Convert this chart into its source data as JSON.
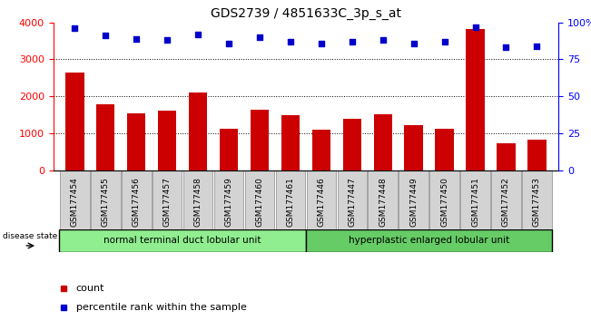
{
  "title": "GDS2739 / 4851633C_3p_s_at",
  "categories": [
    "GSM177454",
    "GSM177455",
    "GSM177456",
    "GSM177457",
    "GSM177458",
    "GSM177459",
    "GSM177460",
    "GSM177461",
    "GSM177446",
    "GSM177447",
    "GSM177448",
    "GSM177449",
    "GSM177450",
    "GSM177451",
    "GSM177452",
    "GSM177453"
  ],
  "bar_values": [
    2650,
    1780,
    1530,
    1610,
    2100,
    1130,
    1640,
    1480,
    1100,
    1380,
    1510,
    1220,
    1130,
    3820,
    720,
    830
  ],
  "percentile_values": [
    96,
    91,
    89,
    88,
    92,
    86,
    90,
    87,
    86,
    87,
    88,
    86,
    87,
    97,
    83,
    84
  ],
  "bar_color": "#cc0000",
  "dot_color": "#0000cc",
  "ylim_left": [
    0,
    4000
  ],
  "ylim_right": [
    0,
    100
  ],
  "yticks_left": [
    0,
    1000,
    2000,
    3000,
    4000
  ],
  "yticks_right": [
    0,
    25,
    50,
    75,
    100
  ],
  "group1_label": "normal terminal duct lobular unit",
  "group1_count": 8,
  "group2_label": "hyperplastic enlarged lobular unit",
  "group2_count": 8,
  "group1_color": "#90EE90",
  "group2_color": "#66CC66",
  "disease_state_label": "disease state",
  "legend_count_label": "count",
  "legend_percentile_label": "percentile rank within the sample",
  "title_fontsize": 10,
  "tick_label_fontsize": 6.5,
  "right_ytick_labels": [
    "0",
    "25",
    "50",
    "75",
    "100%"
  ]
}
